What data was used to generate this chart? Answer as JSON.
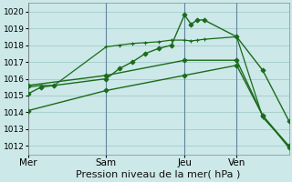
{
  "title": "Pression niveau de la mer( hPa )",
  "background_color": "#cce8e8",
  "grid_color": "#aacfcf",
  "line_color": "#1a6b1a",
  "ylim": [
    1011.5,
    1020.5
  ],
  "yticks": [
    1012,
    1013,
    1014,
    1015,
    1016,
    1017,
    1018,
    1019,
    1020
  ],
  "xtick_labels": [
    "Mer",
    "Sam",
    "Jeu",
    "Ven"
  ],
  "xtick_positions": [
    0,
    24,
    48,
    64
  ],
  "xlim": [
    0,
    80
  ],
  "vlines": [
    0,
    24,
    48,
    64
  ],
  "vline_color": "#446688",
  "vline_lw": 0.8,
  "series": [
    {
      "x": [
        0,
        4,
        8,
        24,
        28,
        32,
        36,
        40,
        44,
        48,
        50,
        52,
        54,
        64,
        72,
        80
      ],
      "y": [
        1015.1,
        1015.5,
        1015.6,
        1016.0,
        1016.6,
        1017.0,
        1017.5,
        1017.8,
        1018.0,
        1019.8,
        1019.25,
        1019.5,
        1019.5,
        1018.5,
        1016.5,
        1013.5
      ],
      "marker": "D",
      "markersize": 2.5,
      "linewidth": 1.0
    },
    {
      "x": [
        0,
        4,
        8,
        24,
        28,
        32,
        36,
        40,
        44,
        48,
        50,
        52,
        54,
        64,
        72,
        80
      ],
      "y": [
        1015.5,
        1015.6,
        1015.6,
        1017.9,
        1018.0,
        1018.1,
        1018.15,
        1018.2,
        1018.3,
        1018.3,
        1018.25,
        1018.3,
        1018.35,
        1018.5,
        1013.7,
        1012.0
      ],
      "marker": "+",
      "markersize": 3.5,
      "linewidth": 0.9
    },
    {
      "x": [
        0,
        24,
        48,
        64,
        72,
        80
      ],
      "y": [
        1015.6,
        1016.2,
        1017.1,
        1017.1,
        1013.8,
        1012.0
      ],
      "marker": "D",
      "markersize": 2.5,
      "linewidth": 1.0
    },
    {
      "x": [
        0,
        24,
        48,
        64,
        72,
        80
      ],
      "y": [
        1014.1,
        1015.3,
        1016.2,
        1016.8,
        1013.8,
        1011.9
      ],
      "marker": "D",
      "markersize": 2.5,
      "linewidth": 1.0
    }
  ]
}
